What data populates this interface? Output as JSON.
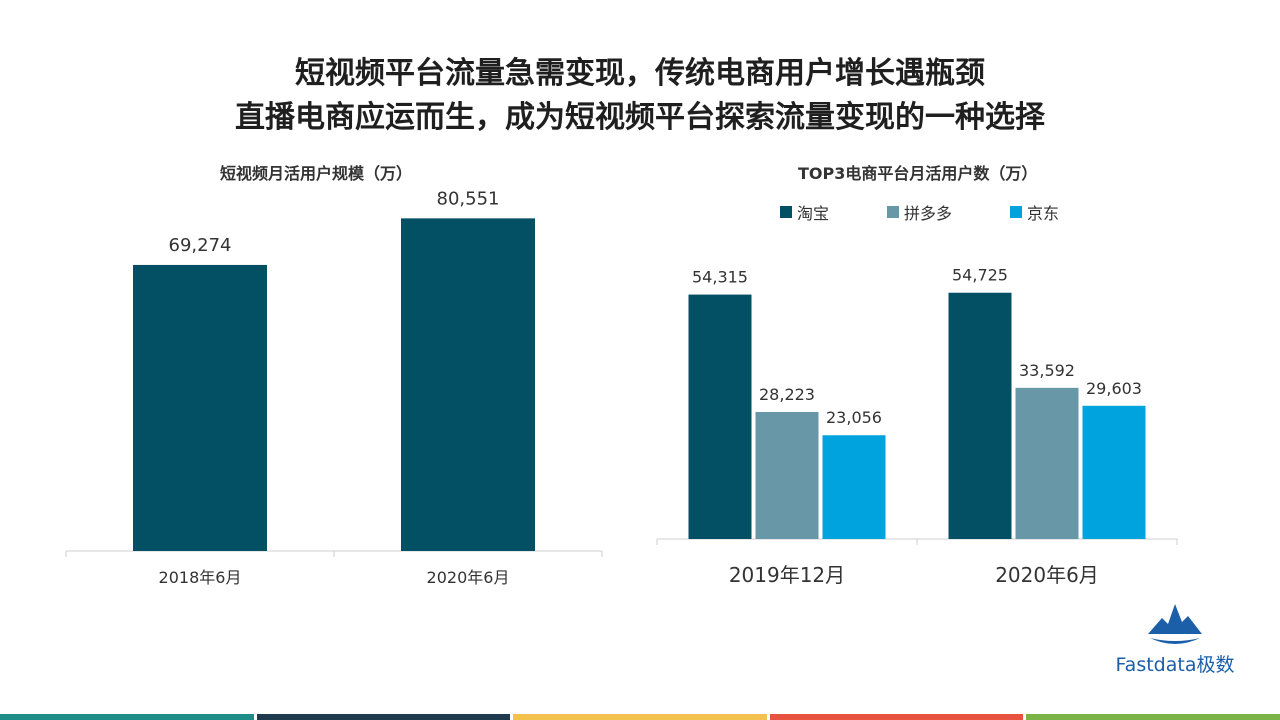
{
  "headline": {
    "line1": "短视频平台流量急需变现，传统电商用户增长遇瓶颈",
    "line2": "直播电商应运而生，成为短视频平台探索流量变现的一种选择"
  },
  "chart_data": [
    {
      "type": "bar",
      "title": "短视频月活用户规模（万）",
      "categories": [
        "2018年6月",
        "2020年6月"
      ],
      "values": [
        69274,
        80551
      ],
      "value_labels": [
        "69,274",
        "80,551"
      ],
      "color": "#034f64",
      "ylim": [
        0,
        85000
      ],
      "grid": false,
      "legend": "none"
    },
    {
      "type": "bar",
      "title": "TOP3电商平台月活用户数（万）",
      "categories": [
        "2019年12月",
        "2020年6月"
      ],
      "series": [
        {
          "name": "淘宝",
          "values": [
            54315,
            54725
          ],
          "labels": [
            "54,315",
            "54,725"
          ],
          "color": "#034f64"
        },
        {
          "name": "拼多多",
          "values": [
            28223,
            33592
          ],
          "labels": [
            "28,223",
            "33,592"
          ],
          "color": "#6897a8"
        },
        {
          "name": "京东",
          "values": [
            23056,
            29603
          ],
          "labels": [
            "23,056",
            "29,603"
          ],
          "color": "#00a3de"
        }
      ],
      "ylim": [
        0,
        60000
      ],
      "grid": false,
      "legend": "top"
    }
  ],
  "brand": {
    "name": "Fastdata极数",
    "color": "#1b5fa8"
  },
  "footer_colors": [
    "#1e8c87",
    "#1f3a4d",
    "#f2c14e",
    "#e8533f",
    "#7bb446"
  ]
}
